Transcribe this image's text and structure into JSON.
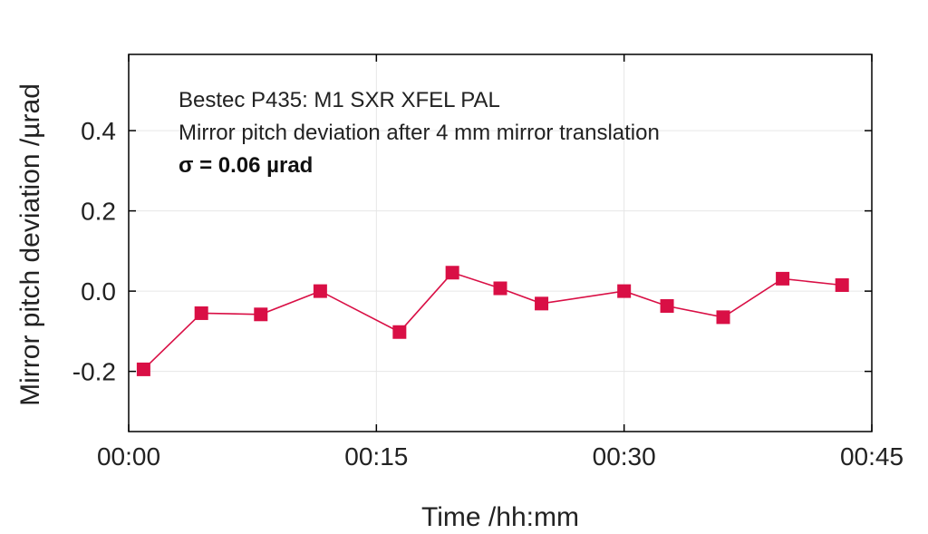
{
  "chart_data": {
    "type": "line",
    "xlabel": "Time /hh:mm",
    "ylabel": "Mirror pitch deviation /µrad",
    "xlim": [
      0,
      45
    ],
    "ylim": [
      -0.35,
      0.59
    ],
    "x_ticks": [
      {
        "value": 0,
        "label": "00:00"
      },
      {
        "value": 15,
        "label": "00:15"
      },
      {
        "value": 30,
        "label": "00:30"
      },
      {
        "value": 45,
        "label": "00:45"
      }
    ],
    "y_ticks": [
      {
        "value": -0.2,
        "label": "-0.2"
      },
      {
        "value": 0.0,
        "label": "0.0"
      },
      {
        "value": 0.2,
        "label": "0.2"
      },
      {
        "value": 0.4,
        "label": "0.4"
      }
    ],
    "grid": true,
    "annotations": [
      "Bestec P435: M1 SXR XFEL PAL",
      "Mirror pitch deviation after 4 mm mirror translation",
      "σ = 0.06 µrad"
    ],
    "series": [
      {
        "color": "#d90f45",
        "marker": "square",
        "x": [
          0.9,
          4.4,
          8.0,
          11.6,
          16.4,
          19.6,
          22.5,
          25.0,
          30.0,
          32.6,
          36.0,
          39.6,
          43.2
        ],
        "y": [
          -0.195,
          -0.055,
          -0.058,
          0.0,
          -0.102,
          0.046,
          0.007,
          -0.031,
          0.0,
          -0.037,
          -0.065,
          0.031,
          0.015
        ]
      }
    ]
  }
}
